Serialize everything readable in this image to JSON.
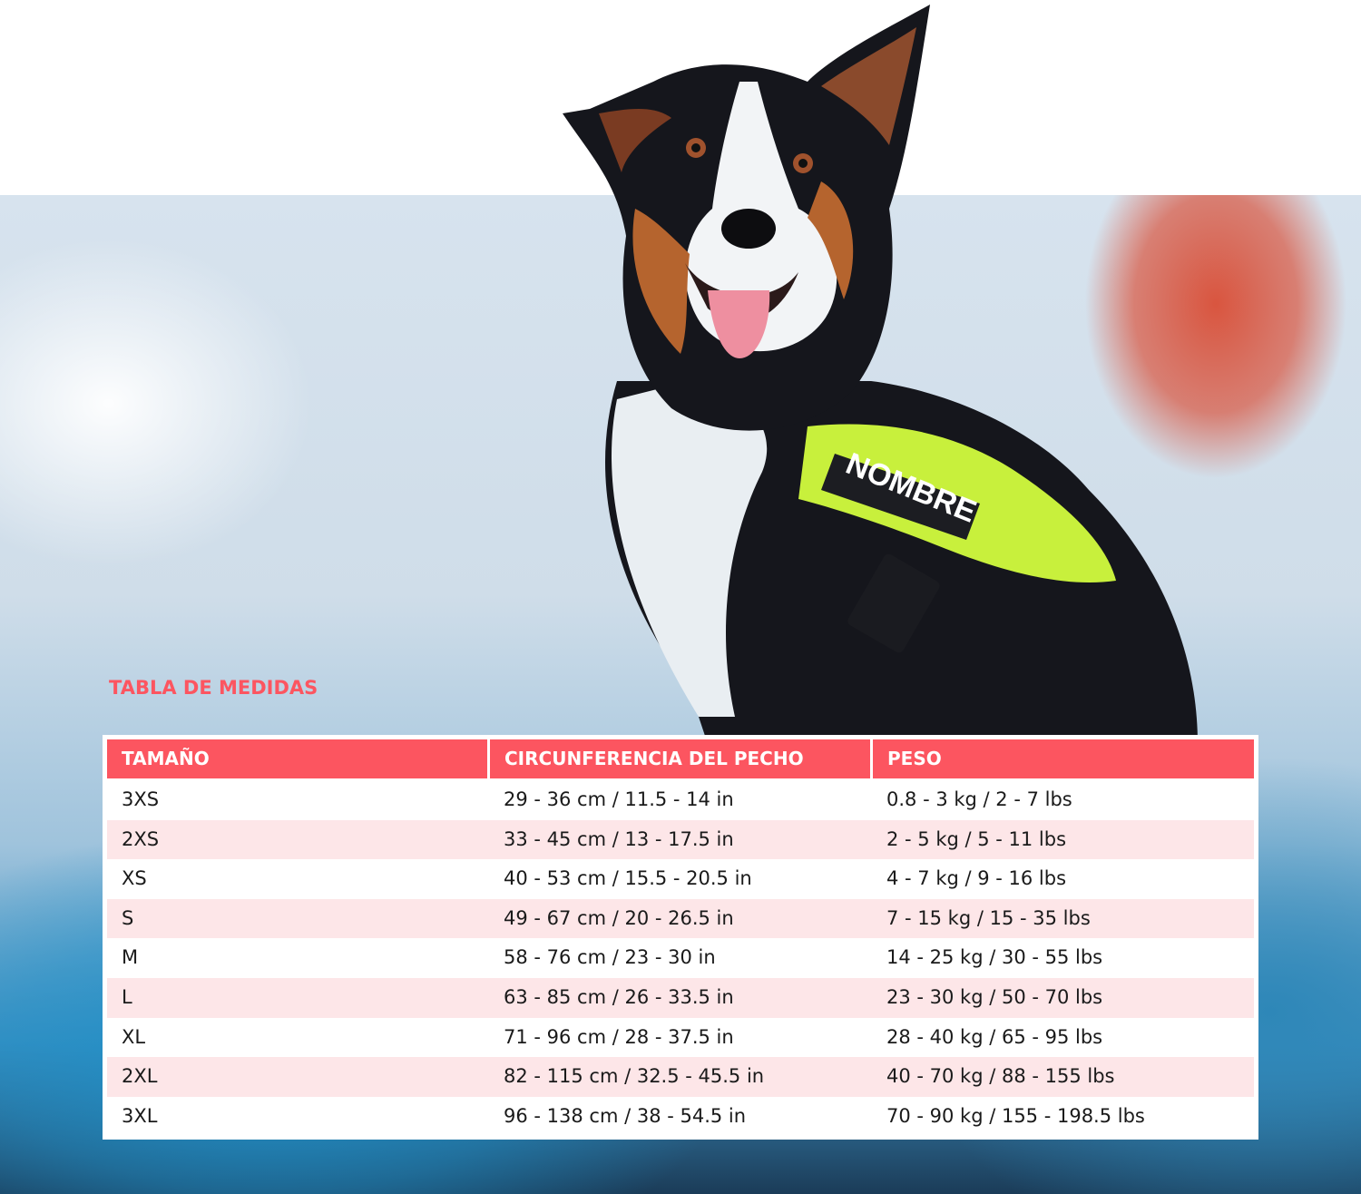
{
  "image": {
    "harness_patch": "NOMBRE",
    "colors": {
      "accent": "#fc5560",
      "stripe": "#fde6e8",
      "harness": "#c8f03c"
    }
  },
  "size_chart": {
    "title": "TABLA DE MEDIDAS",
    "columns": [
      "TAMAÑO",
      "CIRCUNFERENCIA DEL PECHO",
      "PESO"
    ],
    "rows": [
      [
        "3XS",
        "29 - 36 cm / 11.5 - 14 in",
        "0.8 - 3 kg / 2 - 7 lbs"
      ],
      [
        "2XS",
        "33 - 45 cm / 13 - 17.5 in",
        "2 - 5 kg / 5 - 11 lbs"
      ],
      [
        "XS",
        "40 - 53 cm / 15.5 - 20.5 in",
        "4 - 7 kg / 9 - 16 lbs"
      ],
      [
        "S",
        "49 - 67 cm / 20 - 26.5 in",
        "7 - 15 kg / 15 - 35 lbs"
      ],
      [
        "M",
        "58 - 76 cm / 23 - 30 in",
        "14 - 25 kg / 30 - 55 lbs"
      ],
      [
        "L",
        "63 - 85 cm / 26 - 33.5 in",
        "23 - 30 kg / 50 - 70 lbs"
      ],
      [
        "XL",
        "71 - 96 cm / 28 - 37.5 in",
        "28 - 40 kg / 65 - 95 lbs"
      ],
      [
        "2XL",
        "82 - 115 cm / 32.5 - 45.5 in",
        "40 - 70 kg / 88 - 155 lbs"
      ],
      [
        "3XL",
        "96 - 138 cm / 38 - 54.5 in",
        "70 - 90 kg / 155 - 198.5 lbs"
      ]
    ]
  }
}
